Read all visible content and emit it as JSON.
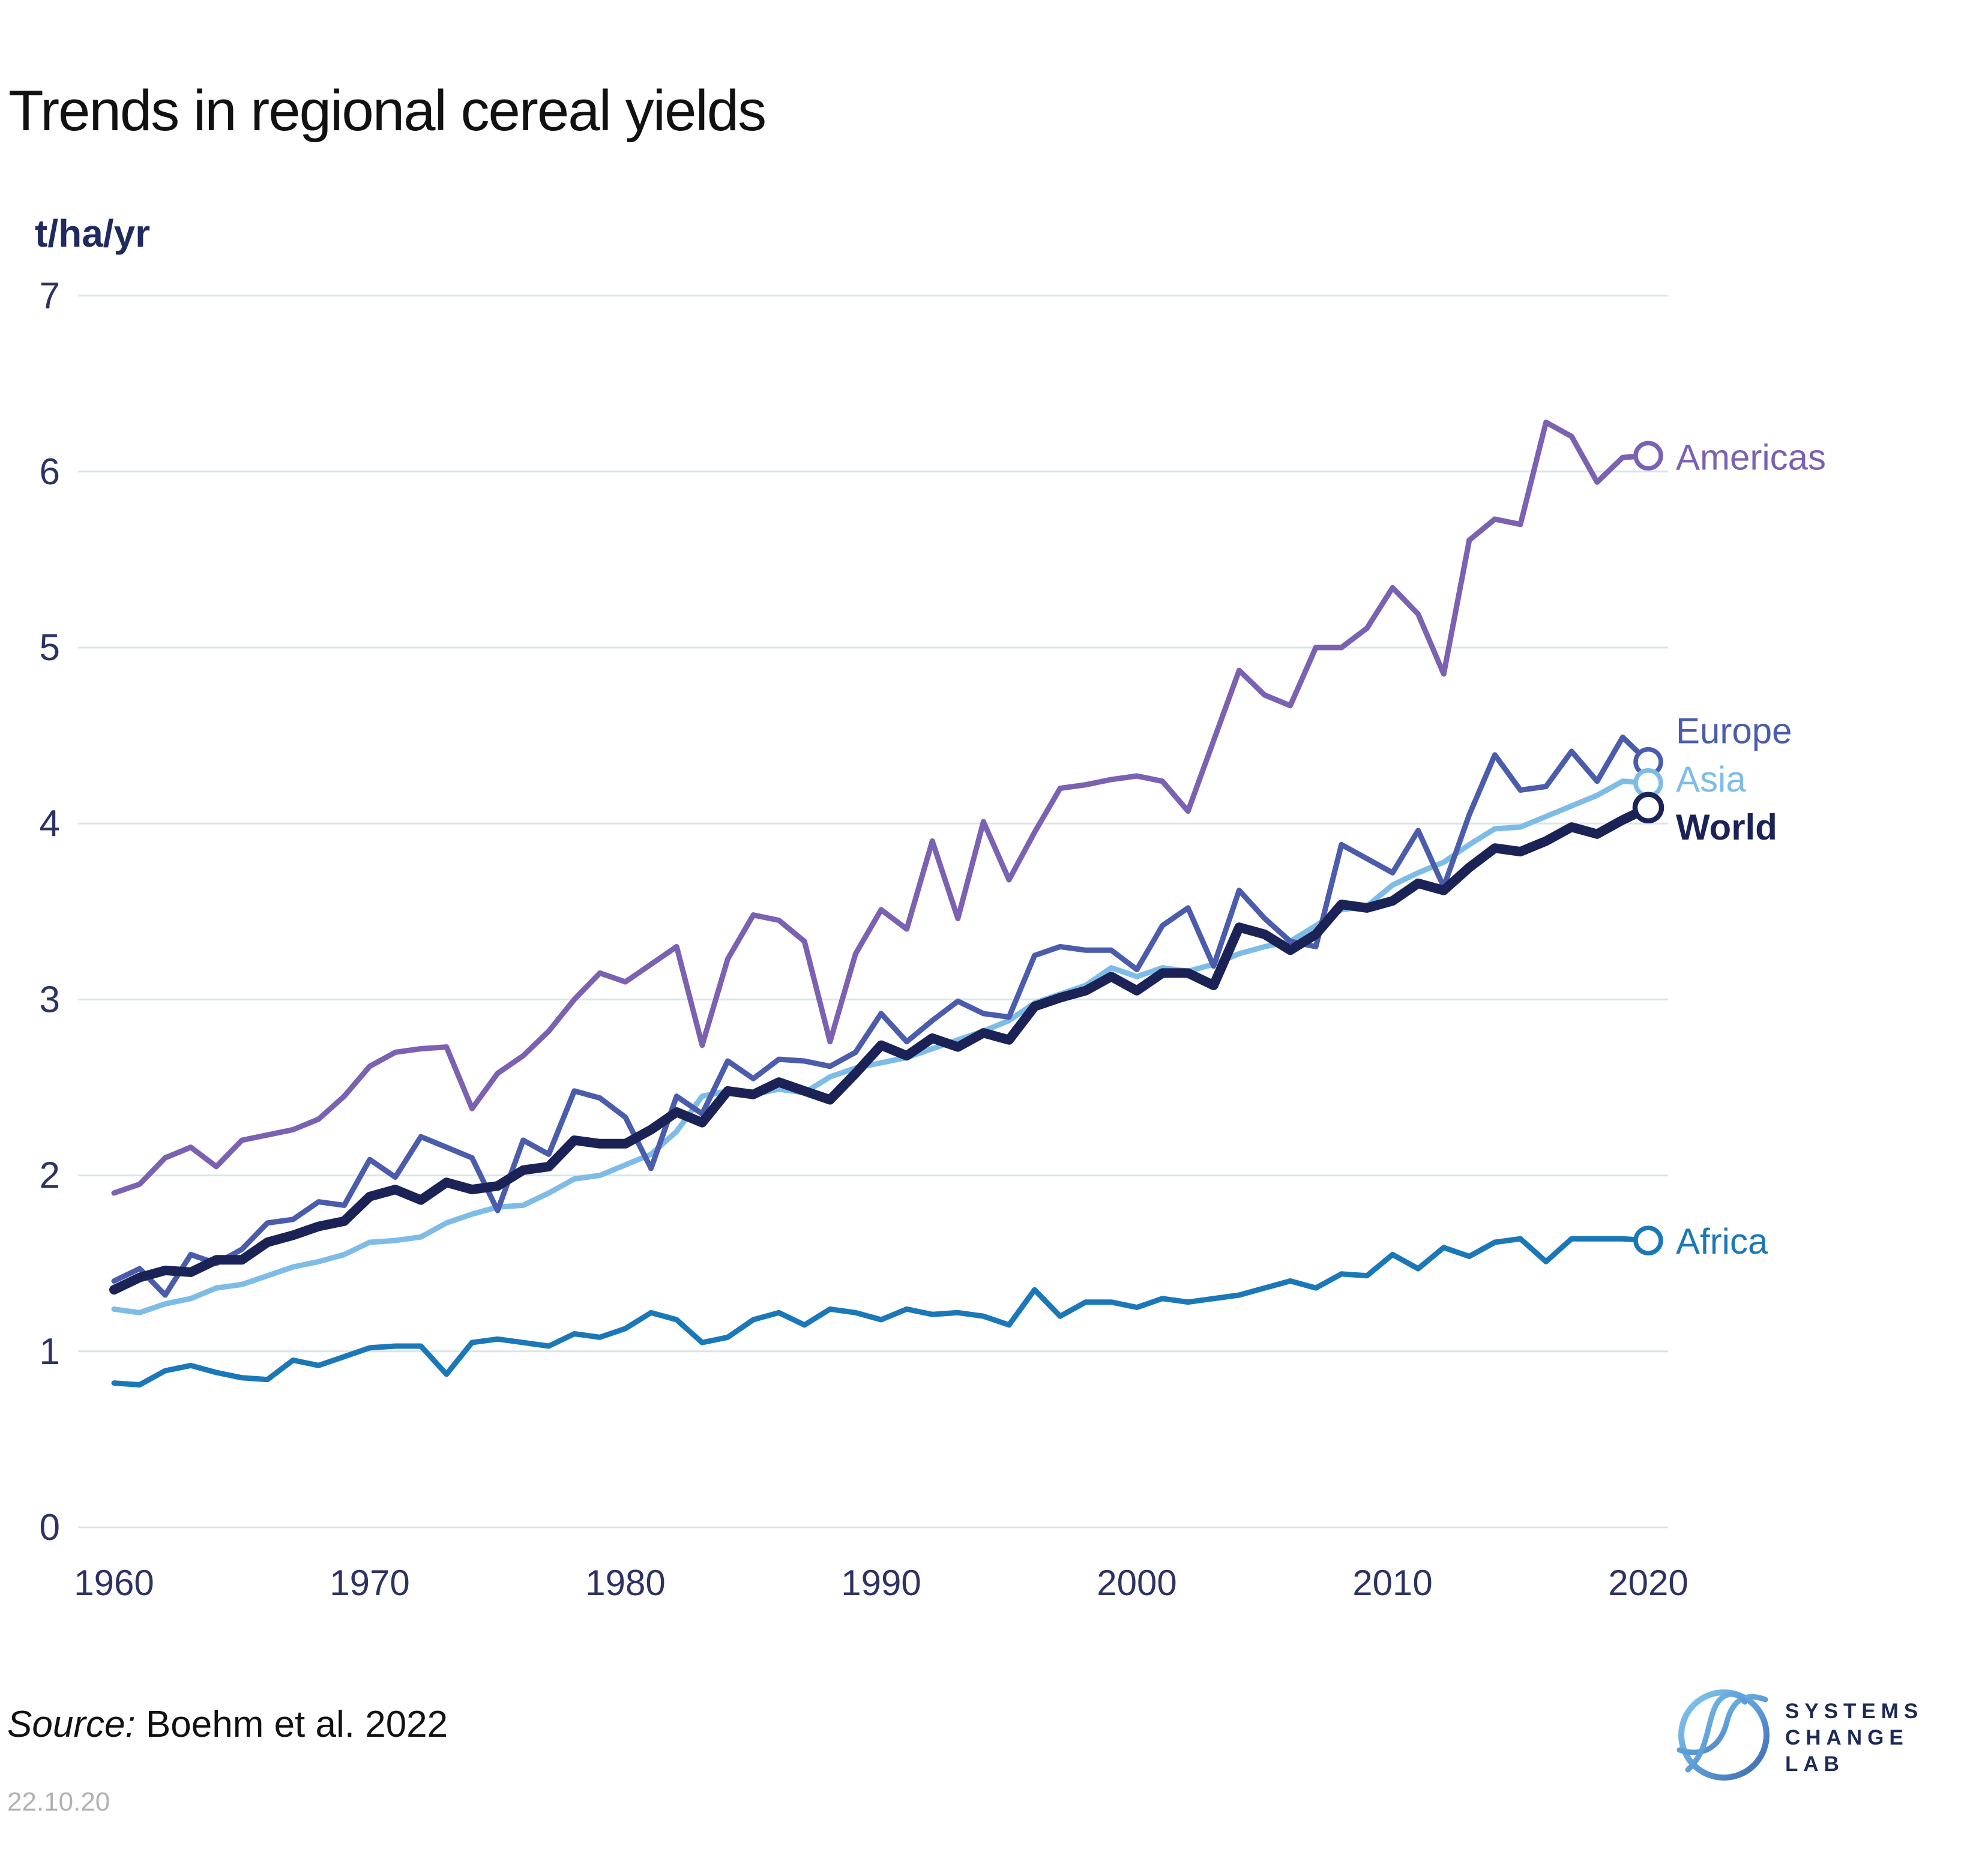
{
  "header": {
    "title": "Trends in regional cereal yields"
  },
  "axis": {
    "unit_label": "t/ha/yr"
  },
  "footer": {
    "source_label": "Source:",
    "source_text": "Boehm et al. 2022",
    "date_stamp": "22.10.20"
  },
  "logo": {
    "line1": "SYSTEMS",
    "line2": "CHANGE",
    "line3": "LAB"
  },
  "colors": {
    "americas": "#7B61B2",
    "europe": "#4A5CAB",
    "asia": "#7EBCE8",
    "world": "#1B2356",
    "africa": "#1B78B8",
    "gridline": "#dce4e8",
    "tick_label": "#2C3263",
    "unit_label": "#1F2A5E",
    "date_stamp": "#b1b1b1",
    "logo_text": "#1D2A56"
  },
  "chart_data": {
    "type": "line",
    "title": "Trends in regional cereal yields",
    "xlabel": "",
    "ylabel": "t/ha/yr",
    "ylim": [
      0,
      7
    ],
    "x_start": 1960,
    "x_end": 2020,
    "x_step": 1,
    "x_ticks": [
      1960,
      1970,
      1980,
      1990,
      2000,
      2010,
      2020
    ],
    "y_ticks": [
      0,
      1,
      2,
      3,
      4,
      5,
      6,
      7
    ],
    "grid": "horizontal",
    "legend_position": "right-of-line-ends",
    "marker_at_end": "open-circle",
    "series": [
      {
        "name": "Africa",
        "color": "#1B78B8",
        "width": 9,
        "bold_label": false,
        "label_dy": 1,
        "values": [
          0.82,
          0.81,
          0.89,
          0.92,
          0.88,
          0.85,
          0.84,
          0.95,
          0.92,
          0.97,
          1.02,
          1.03,
          1.03,
          0.87,
          1.05,
          1.07,
          1.05,
          1.03,
          1.1,
          1.08,
          1.13,
          1.22,
          1.18,
          1.05,
          1.08,
          1.18,
          1.22,
          1.15,
          1.24,
          1.22,
          1.18,
          1.24,
          1.21,
          1.22,
          1.2,
          1.15,
          1.35,
          1.2,
          1.28,
          1.28,
          1.25,
          1.3,
          1.28,
          1.3,
          1.32,
          1.36,
          1.4,
          1.36,
          1.44,
          1.43,
          1.55,
          1.47,
          1.59,
          1.54,
          1.62,
          1.64,
          1.51,
          1.64,
          1.64,
          1.64,
          1.63
        ]
      },
      {
        "name": "Asia",
        "color": "#7EBCE8",
        "width": 9,
        "bold_label": false,
        "label_dy": -7,
        "values": [
          1.24,
          1.22,
          1.27,
          1.3,
          1.36,
          1.38,
          1.43,
          1.48,
          1.51,
          1.55,
          1.62,
          1.63,
          1.65,
          1.73,
          1.78,
          1.82,
          1.83,
          1.9,
          1.98,
          2.0,
          2.06,
          2.12,
          2.25,
          2.45,
          2.48,
          2.46,
          2.49,
          2.47,
          2.56,
          2.61,
          2.64,
          2.67,
          2.72,
          2.77,
          2.82,
          2.88,
          2.98,
          3.03,
          3.08,
          3.18,
          3.13,
          3.18,
          3.16,
          3.2,
          3.26,
          3.3,
          3.33,
          3.42,
          3.51,
          3.53,
          3.65,
          3.72,
          3.78,
          3.88,
          3.97,
          3.98,
          4.04,
          4.1,
          4.16,
          4.24,
          4.23
        ]
      },
      {
        "name": "Europe",
        "color": "#4A5CAB",
        "width": 9,
        "bold_label": false,
        "label_dy": -52,
        "values": [
          1.4,
          1.47,
          1.32,
          1.55,
          1.5,
          1.58,
          1.73,
          1.75,
          1.85,
          1.83,
          2.09,
          1.99,
          2.22,
          2.16,
          2.1,
          1.8,
          2.2,
          2.12,
          2.48,
          2.44,
          2.33,
          2.04,
          2.45,
          2.35,
          2.65,
          2.55,
          2.66,
          2.65,
          2.62,
          2.7,
          2.92,
          2.76,
          2.88,
          2.99,
          2.92,
          2.9,
          3.25,
          3.3,
          3.28,
          3.28,
          3.17,
          3.42,
          3.52,
          3.19,
          3.62,
          3.46,
          3.33,
          3.3,
          3.88,
          3.8,
          3.72,
          3.96,
          3.64,
          4.05,
          4.39,
          4.19,
          4.21,
          4.41,
          4.24,
          4.49,
          4.35
        ]
      },
      {
        "name": "Americas",
        "color": "#7B61B2",
        "width": 9,
        "bold_label": false,
        "label_dy": 2,
        "values": [
          1.9,
          1.95,
          2.1,
          2.16,
          2.05,
          2.2,
          2.23,
          2.26,
          2.32,
          2.45,
          2.62,
          2.7,
          2.72,
          2.73,
          2.38,
          2.58,
          2.68,
          2.82,
          3.0,
          3.15,
          3.1,
          3.2,
          3.3,
          2.74,
          3.23,
          3.48,
          3.45,
          3.33,
          2.76,
          3.26,
          3.51,
          3.4,
          3.9,
          3.46,
          4.01,
          3.68,
          3.95,
          4.2,
          4.22,
          4.25,
          4.27,
          4.24,
          4.07,
          4.47,
          4.87,
          4.73,
          4.67,
          5.0,
          5.0,
          5.11,
          5.34,
          5.19,
          4.85,
          5.61,
          5.73,
          5.7,
          6.28,
          6.2,
          5.94,
          6.08,
          6.09
        ]
      },
      {
        "name": "World",
        "color": "#1B2356",
        "width": 16,
        "bold_label": true,
        "label_dy": 32,
        "values": [
          1.35,
          1.42,
          1.46,
          1.45,
          1.52,
          1.52,
          1.62,
          1.66,
          1.71,
          1.74,
          1.88,
          1.92,
          1.86,
          1.96,
          1.92,
          1.94,
          2.03,
          2.05,
          2.2,
          2.18,
          2.18,
          2.26,
          2.36,
          2.3,
          2.48,
          2.46,
          2.53,
          2.48,
          2.43,
          2.58,
          2.74,
          2.68,
          2.78,
          2.73,
          2.81,
          2.77,
          2.96,
          3.01,
          3.05,
          3.13,
          3.05,
          3.15,
          3.15,
          3.08,
          3.41,
          3.37,
          3.28,
          3.37,
          3.54,
          3.52,
          3.56,
          3.66,
          3.62,
          3.75,
          3.86,
          3.84,
          3.9,
          3.98,
          3.94,
          4.02,
          4.09
        ]
      }
    ]
  }
}
